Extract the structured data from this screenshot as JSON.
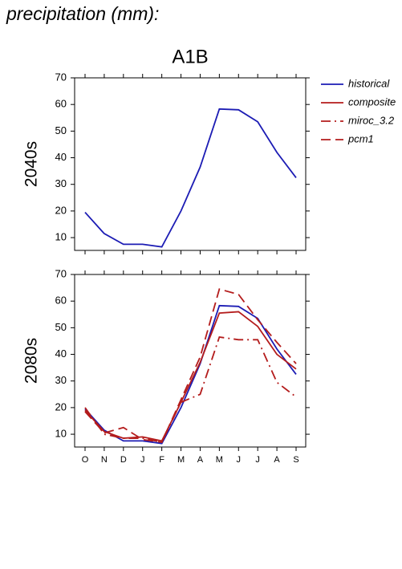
{
  "title": "precipitation (mm):",
  "subtitle": "A1B",
  "chart_data": [
    {
      "type": "line",
      "ylabel": "2040s",
      "categories": [
        null,
        null,
        null,
        null,
        null,
        null,
        null,
        null,
        null,
        null,
        null,
        null
      ],
      "ylim": [
        5.2,
        70
      ],
      "yticks": [
        10,
        20,
        30,
        40,
        50,
        60,
        70
      ],
      "series": [
        {
          "color": "#1c1cb4",
          "dash": "solid",
          "values": [
            19.5,
            11.5,
            7.5,
            7.5,
            6.5,
            20,
            36.5,
            58.3,
            58,
            53.5,
            42,
            32.5
          ]
        }
      ]
    },
    {
      "type": "line",
      "ylabel": "2080s",
      "categories": [
        "O",
        "N",
        "D",
        "J",
        "F",
        "M",
        "A",
        "M",
        "J",
        "J",
        "A",
        "S"
      ],
      "ylim": [
        5.2,
        70
      ],
      "yticks": [
        10,
        20,
        30,
        40,
        50,
        60,
        70
      ],
      "legend": "outside-top-right",
      "series": [
        {
          "name": "historical",
          "color": "#1c1cb4",
          "dash": "solid",
          "values": [
            19.5,
            11.5,
            7.5,
            7.5,
            6.5,
            20,
            36.5,
            58.3,
            58,
            53.5,
            42,
            32.5
          ]
        },
        {
          "name": "composite",
          "color": "#b41c1c",
          "dash": "solid",
          "values": [
            19,
            11,
            8.5,
            9,
            7.5,
            22,
            37,
            55.5,
            56,
            50.5,
            40,
            34.5
          ]
        },
        {
          "name": "miroc_3.2",
          "color": "#b41c1c",
          "dash": "dashdot",
          "values": [
            20,
            10,
            8.5,
            8.5,
            7,
            22,
            25,
            46.5,
            45.5,
            45.5,
            29.5,
            24
          ]
        },
        {
          "name": "pcm1",
          "color": "#b41c1c",
          "dash": "dashed",
          "values": [
            18.5,
            10.5,
            12.5,
            8,
            7,
            23,
            39,
            64.5,
            62.5,
            53,
            44.5,
            36.5
          ]
        }
      ]
    }
  ]
}
